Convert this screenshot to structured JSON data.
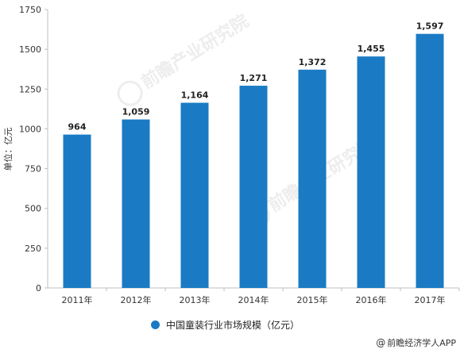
{
  "chart_data": {
    "type": "bar",
    "categories": [
      "2011年",
      "2012年",
      "2013年",
      "2014年",
      "2015年",
      "2016年",
      "2017年"
    ],
    "values": [
      964,
      1059,
      1164,
      1271,
      1372,
      1455,
      1597
    ],
    "value_labels": [
      "964",
      "1,059",
      "1,164",
      "1,271",
      "1,372",
      "1,455",
      "1,597"
    ],
    "ylabel": "单位：亿元",
    "ylim": [
      0,
      1750
    ],
    "yticks": [
      0,
      250,
      500,
      750,
      1000,
      1250,
      1500,
      1750
    ],
    "grid": false,
    "legend_position": "bottom",
    "series": [
      {
        "name": "中国童装行业市场规模（亿元）",
        "color": "#1a7bc4"
      }
    ]
  },
  "watermark": {
    "text": "前瞻产业研究院"
  },
  "footer": {
    "credit": "前瞻经济学人APP",
    "icon": "at-icon"
  }
}
